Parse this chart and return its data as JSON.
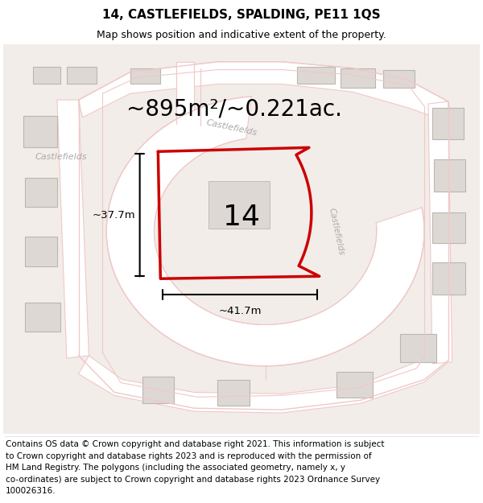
{
  "title": "14, CASTLEFIELDS, SPALDING, PE11 1QS",
  "subtitle": "Map shows position and indicative extent of the property.",
  "area_text": "~895m²/~0.221ac.",
  "label_number": "14",
  "dim_vertical": "~37.7m",
  "dim_horizontal": "~41.7m",
  "bg_color": "#f2ede9",
  "white_bg": "#ffffff",
  "road_color": "#f0c8c8",
  "road_fill": "#faf5f5",
  "building_fill": "#ddd8d3",
  "building_edge": "#bbb6b0",
  "plot_color": "#cc0000",
  "street_label_color": "#aaaaaa",
  "footer_text_lines": [
    "Contains OS data © Crown copyright and database right 2021. This information is subject",
    "to Crown copyright and database rights 2023 and is reproduced with the permission of",
    "HM Land Registry. The polygons (including the associated geometry, namely x, y",
    "co-ordinates) are subject to Crown copyright and database rights 2023 Ordnance Survey",
    "100026316."
  ],
  "title_fontsize": 11,
  "subtitle_fontsize": 9,
  "area_fontsize": 20,
  "label_fontsize": 26,
  "footer_fontsize": 7.5,
  "street_fontsize": 8
}
